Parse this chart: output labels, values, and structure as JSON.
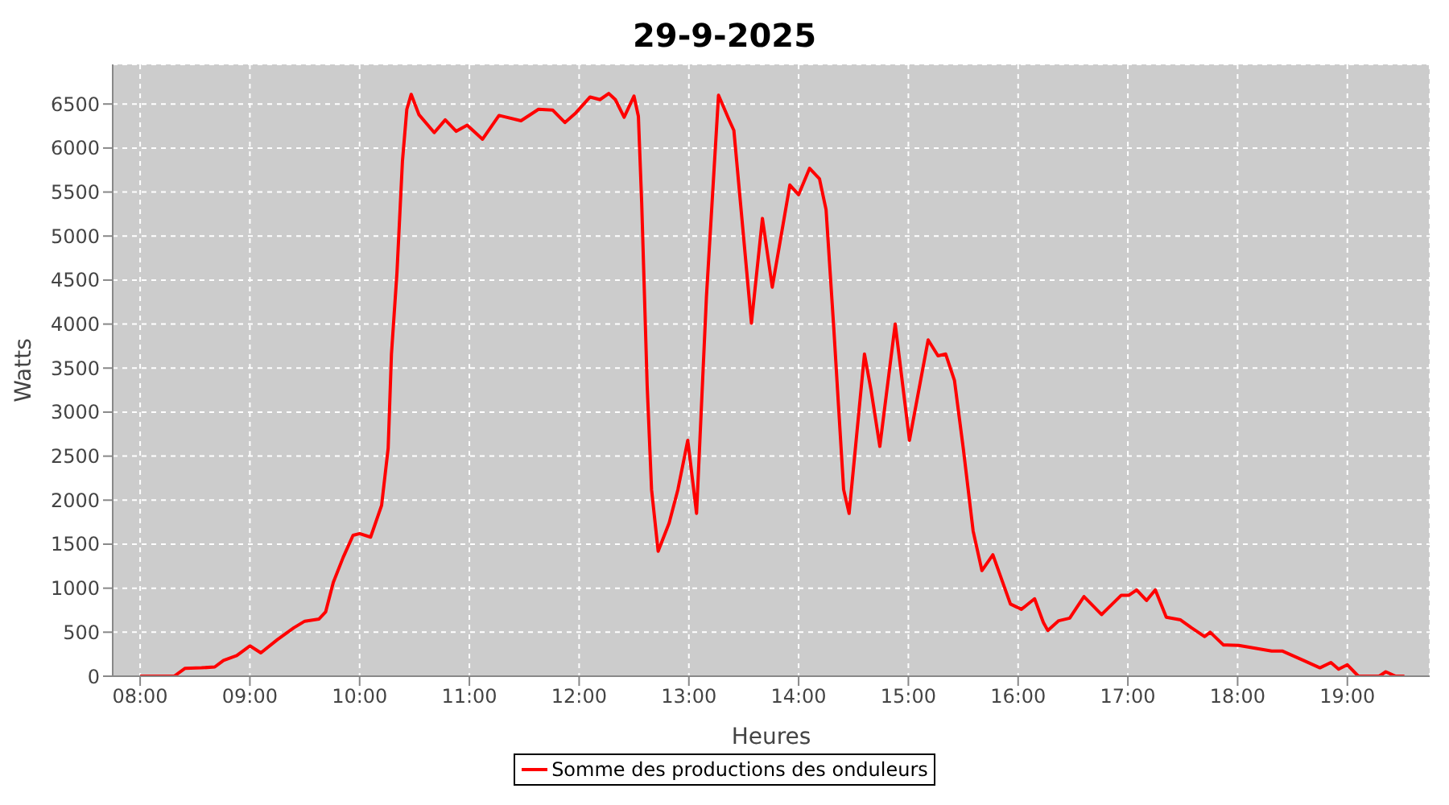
{
  "chart_data": {
    "type": "line",
    "title": "29-9-2025",
    "xlabel": "Heures",
    "ylabel": "Watts",
    "xlim": [
      7.75,
      19.75
    ],
    "xticks": [
      {
        "value": 8,
        "label": "08:00"
      },
      {
        "value": 9,
        "label": "09:00"
      },
      {
        "value": 10,
        "label": "10:00"
      },
      {
        "value": 11,
        "label": "11:00"
      },
      {
        "value": 12,
        "label": "12:00"
      },
      {
        "value": 13,
        "label": "13:00"
      },
      {
        "value": 14,
        "label": "14:00"
      },
      {
        "value": 15,
        "label": "15:00"
      },
      {
        "value": 16,
        "label": "16:00"
      },
      {
        "value": 17,
        "label": "17:00"
      },
      {
        "value": 18,
        "label": "18:00"
      },
      {
        "value": 19,
        "label": "19:00"
      }
    ],
    "ylim": [
      0,
      6950
    ],
    "yticks": [
      0,
      500,
      1000,
      1500,
      2000,
      2500,
      3000,
      3500,
      4000,
      4500,
      5000,
      5500,
      6000,
      6500
    ],
    "grid": true,
    "legend": "bottom",
    "line_style": "solid",
    "x": [
      8.0,
      8.31,
      8.41,
      8.56,
      8.68,
      8.76,
      8.88,
      9.0,
      9.1,
      9.25,
      9.4,
      9.5,
      9.63,
      9.69,
      9.76,
      9.85,
      9.94,
      10.0,
      10.1,
      10.2,
      10.26,
      10.29,
      10.34,
      10.39,
      10.43,
      10.47,
      10.54,
      10.68,
      10.78,
      10.88,
      10.98,
      11.12,
      11.27,
      11.47,
      11.63,
      11.76,
      11.87,
      11.97,
      12.1,
      12.19,
      12.27,
      12.33,
      12.41,
      12.5,
      12.54,
      12.57,
      12.62,
      12.66,
      12.72,
      12.82,
      12.9,
      12.99,
      13.07,
      13.16,
      13.27,
      13.37,
      13.41,
      13.57,
      13.67,
      13.76,
      13.92,
      14.0,
      14.1,
      14.19,
      14.25,
      14.32,
      14.41,
      14.46,
      14.6,
      14.66,
      14.74,
      14.88,
      15.01,
      15.18,
      15.27,
      15.34,
      15.42,
      15.5,
      15.59,
      15.67,
      15.77,
      15.83,
      15.93,
      16.03,
      16.15,
      16.23,
      16.27,
      16.37,
      16.47,
      16.6,
      16.69,
      16.76,
      16.94,
      17.01,
      17.08,
      17.17,
      17.25,
      17.35,
      17.48,
      17.58,
      17.7,
      17.75,
      17.87,
      18.01,
      18.31,
      18.41,
      18.6,
      18.75,
      18.85,
      18.92,
      19.0,
      19.1,
      19.29,
      19.35,
      19.44,
      19.52
    ],
    "series": [
      {
        "name": "Somme des productions des onduleurs",
        "color": "#ff0000",
        "values": [
          0,
          0,
          90,
          95,
          105,
          180,
          235,
          345,
          265,
          415,
          550,
          625,
          650,
          730,
          1065,
          1350,
          1600,
          1620,
          1580,
          1940,
          2590,
          3660,
          4580,
          5850,
          6440,
          6610,
          6380,
          6175,
          6320,
          6190,
          6260,
          6100,
          6370,
          6310,
          6440,
          6430,
          6290,
          6400,
          6580,
          6550,
          6620,
          6550,
          6350,
          6590,
          6360,
          5380,
          3300,
          2120,
          1420,
          1740,
          2120,
          2680,
          1850,
          4310,
          6600,
          6310,
          6200,
          4010,
          5200,
          4420,
          5580,
          5470,
          5770,
          5650,
          5300,
          3960,
          2120,
          1850,
          3660,
          3250,
          2610,
          4000,
          2680,
          3820,
          3640,
          3660,
          3360,
          2590,
          1650,
          1200,
          1380,
          1170,
          820,
          760,
          880,
          610,
          520,
          630,
          660,
          905,
          790,
          700,
          920,
          920,
          980,
          860,
          980,
          670,
          640,
          550,
          450,
          500,
          355,
          350,
          285,
          285,
          180,
          95,
          155,
          80,
          130,
          0,
          0,
          50,
          0,
          0
        ]
      }
    ]
  }
}
